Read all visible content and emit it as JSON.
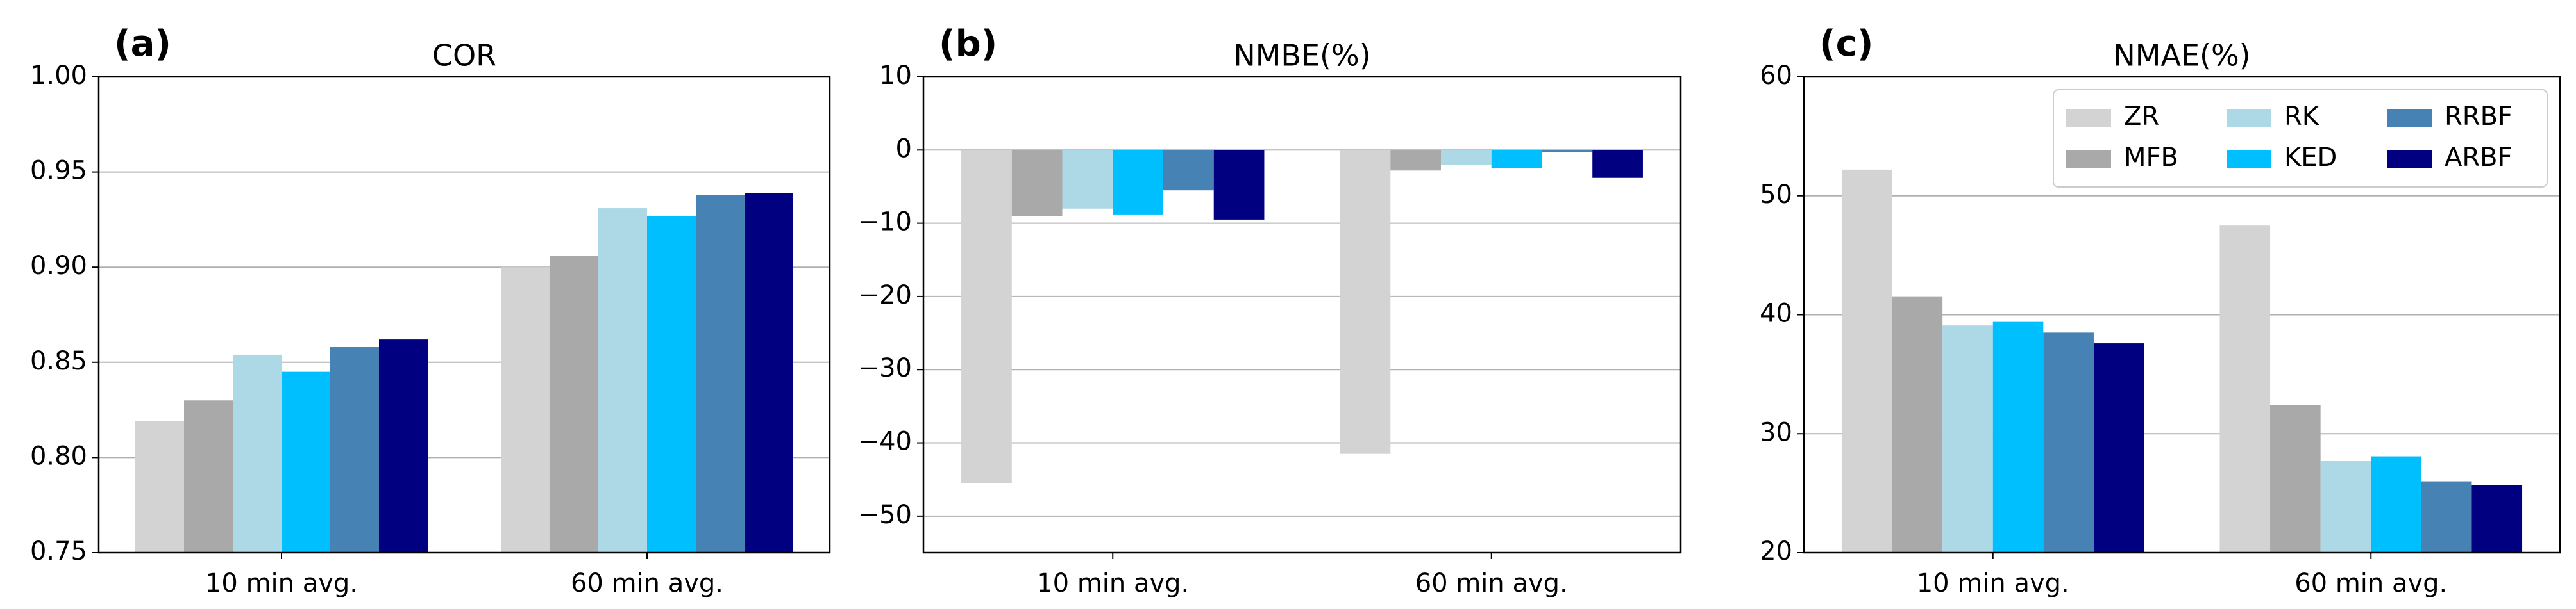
{
  "chart_data": [
    {
      "type": "bar",
      "panel_label": "(a)",
      "title": "COR",
      "categories": [
        "10 min avg.",
        "60 min avg."
      ],
      "series": [
        {
          "color": "#d3d3d3",
          "values": [
            0.819,
            0.9
          ]
        },
        {
          "color": "#a9a9a9",
          "values": [
            0.83,
            0.906
          ]
        },
        {
          "color": "#add8e6",
          "values": [
            0.854,
            0.931
          ]
        },
        {
          "color": "#00bfff",
          "values": [
            0.845,
            0.927
          ]
        },
        {
          "color": "#4682b4",
          "values": [
            0.858,
            0.938
          ]
        },
        {
          "color": "#000080",
          "values": [
            0.862,
            0.939
          ]
        }
      ],
      "ylim": [
        0.75,
        1.0
      ],
      "yticks": [
        0.75,
        {
          "value": 0.8,
          "label": "0.80"
        },
        0.85,
        {
          "value": 0.9,
          "label": "0.90"
        },
        0.95,
        {
          "value": 1.0,
          "label": "1.00"
        }
      ],
      "grid": true
    },
    {
      "type": "bar",
      "panel_label": "(b)",
      "title": "NMBE(%)",
      "categories": [
        "10 min avg.",
        "60 min avg."
      ],
      "series": [
        {
          "color": "#d3d3d3",
          "values": [
            -45.5,
            -41.5
          ]
        },
        {
          "color": "#a9a9a9",
          "values": [
            -9,
            -2.8
          ]
        },
        {
          "color": "#add8e6",
          "values": [
            -8,
            -2
          ]
        },
        {
          "color": "#00bfff",
          "values": [
            -8.8,
            -2.5
          ]
        },
        {
          "color": "#4682b4",
          "values": [
            -5.5,
            -0.3
          ]
        },
        {
          "color": "#000080",
          "values": [
            -9.5,
            -3.8
          ]
        }
      ],
      "ylim": [
        -55,
        10
      ],
      "yticks": [
        {
          "value": -50,
          "label": "−50"
        },
        {
          "value": -40,
          "label": "−40"
        },
        {
          "value": -30,
          "label": "−30"
        },
        {
          "value": -20,
          "label": "−20"
        },
        {
          "value": -10,
          "label": "−10"
        },
        0,
        10
      ],
      "grid": true
    },
    {
      "type": "bar",
      "panel_label": "(c)",
      "title": "NMAE(%)",
      "categories": [
        "10 min avg.",
        "60 min avg."
      ],
      "series": [
        {
          "name": "ZR",
          "color": "#d3d3d3",
          "values": [
            52.2,
            47.5
          ]
        },
        {
          "name": "MFB",
          "color": "#a9a9a9",
          "values": [
            41.5,
            32.4
          ]
        },
        {
          "name": "RK",
          "color": "#add8e6",
          "values": [
            39.1,
            27.7
          ]
        },
        {
          "name": "KED",
          "color": "#00bfff",
          "values": [
            39.4,
            28.1
          ]
        },
        {
          "name": "RRBF",
          "color": "#4682b4",
          "values": [
            38.5,
            26.0
          ]
        },
        {
          "name": "ARBF",
          "color": "#000080",
          "values": [
            37.6,
            25.7
          ]
        }
      ],
      "ylim": [
        20,
        60
      ],
      "yticks": [
        20,
        30,
        40,
        50,
        60
      ],
      "grid": true,
      "legend": "upper right"
    }
  ]
}
